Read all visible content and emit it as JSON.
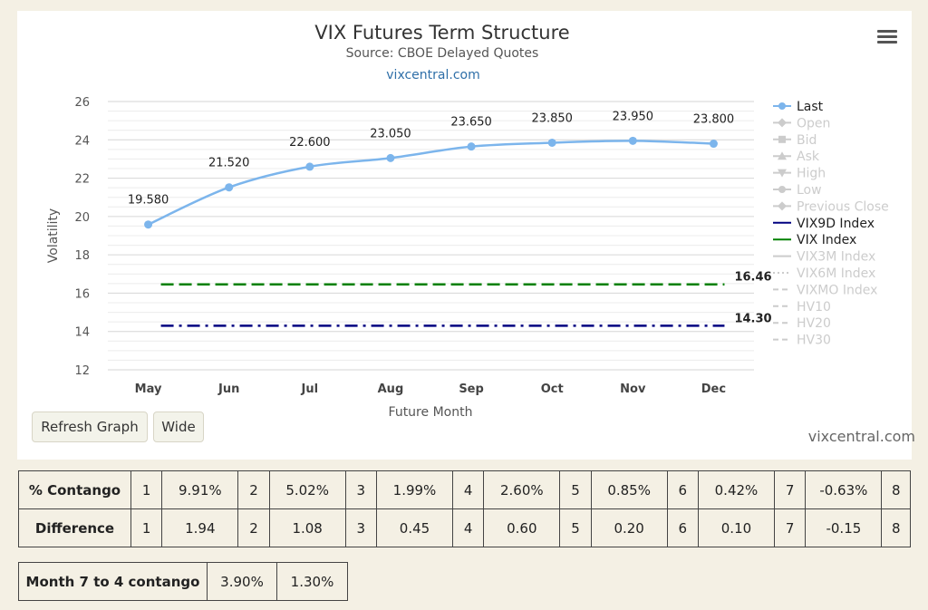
{
  "chart_data": {
    "type": "line",
    "title": "VIX Futures Term Structure",
    "subtitle": "Source: CBOE Delayed Quotes",
    "source_link": "vixcentral.com",
    "xlabel": "Future Month",
    "ylabel": "Volatility",
    "categories": [
      "May",
      "Jun",
      "Jul",
      "Aug",
      "Sep",
      "Oct",
      "Nov",
      "Dec"
    ],
    "ylim": [
      12,
      26
    ],
    "yticks": [
      12,
      14,
      16,
      18,
      20,
      22,
      24,
      26
    ],
    "grid": true,
    "legend_position": "right",
    "series": [
      {
        "name": "Last",
        "values": [
          19.58,
          21.52,
          22.6,
          23.05,
          23.65,
          23.85,
          23.95,
          23.8
        ],
        "labels": [
          "19.580",
          "21.520",
          "22.600",
          "23.050",
          "23.650",
          "23.850",
          "23.950",
          "23.800"
        ],
        "color": "#7cb5ec",
        "style": "solid-spline-markers"
      },
      {
        "name": "VIX9D Index",
        "value": 14.3,
        "label": "14.30",
        "color": "#000080",
        "style": "dashdot"
      },
      {
        "name": "VIX Index",
        "value": 16.46,
        "label": "16.46",
        "color": "#008000",
        "style": "dash"
      }
    ],
    "legend": [
      {
        "name": "Last",
        "active": true,
        "color": "#7cb5ec",
        "symbol": "circle"
      },
      {
        "name": "Open",
        "active": false,
        "symbol": "diamond"
      },
      {
        "name": "Bid",
        "active": false,
        "symbol": "square"
      },
      {
        "name": "Ask",
        "active": false,
        "symbol": "triangle"
      },
      {
        "name": "High",
        "active": false,
        "symbol": "triangle-down"
      },
      {
        "name": "Low",
        "active": false,
        "symbol": "circle"
      },
      {
        "name": "Previous Close",
        "active": false,
        "symbol": "diamond"
      },
      {
        "name": "VIX9D Index",
        "active": true,
        "color": "#000080",
        "symbol": "line"
      },
      {
        "name": "VIX Index",
        "active": true,
        "color": "#008000",
        "symbol": "line"
      },
      {
        "name": "VIX3M Index",
        "active": false,
        "symbol": "line"
      },
      {
        "name": "VIX6M Index",
        "active": false,
        "symbol": "dotted"
      },
      {
        "name": "VIXMO Index",
        "active": false,
        "symbol": "dashed"
      },
      {
        "name": "HV10",
        "active": false,
        "symbol": "dashed"
      },
      {
        "name": "HV20",
        "active": false,
        "symbol": "dashed"
      },
      {
        "name": "HV30",
        "active": false,
        "symbol": "dashed"
      }
    ]
  },
  "controls": {
    "refresh_label": "Refresh Graph",
    "wide_label": "Wide",
    "menu_icon": "hamburger-menu-icon"
  },
  "credit": "vixcentral.com",
  "contango_table": {
    "rows": [
      {
        "label": "% Contango",
        "cells": [
          "1",
          "9.91%",
          "2",
          "5.02%",
          "3",
          "1.99%",
          "4",
          "2.60%",
          "5",
          "0.85%",
          "6",
          "0.42%",
          "7",
          "-0.63%",
          "8"
        ]
      },
      {
        "label": "Difference",
        "cells": [
          "1",
          "1.94",
          "2",
          "1.08",
          "3",
          "0.45",
          "4",
          "0.60",
          "5",
          "0.20",
          "6",
          "0.10",
          "7",
          "-0.15",
          "8"
        ]
      }
    ]
  },
  "month_table": {
    "label": "Month 7 to 4 contango",
    "values": [
      "3.90%",
      "1.30%"
    ]
  }
}
